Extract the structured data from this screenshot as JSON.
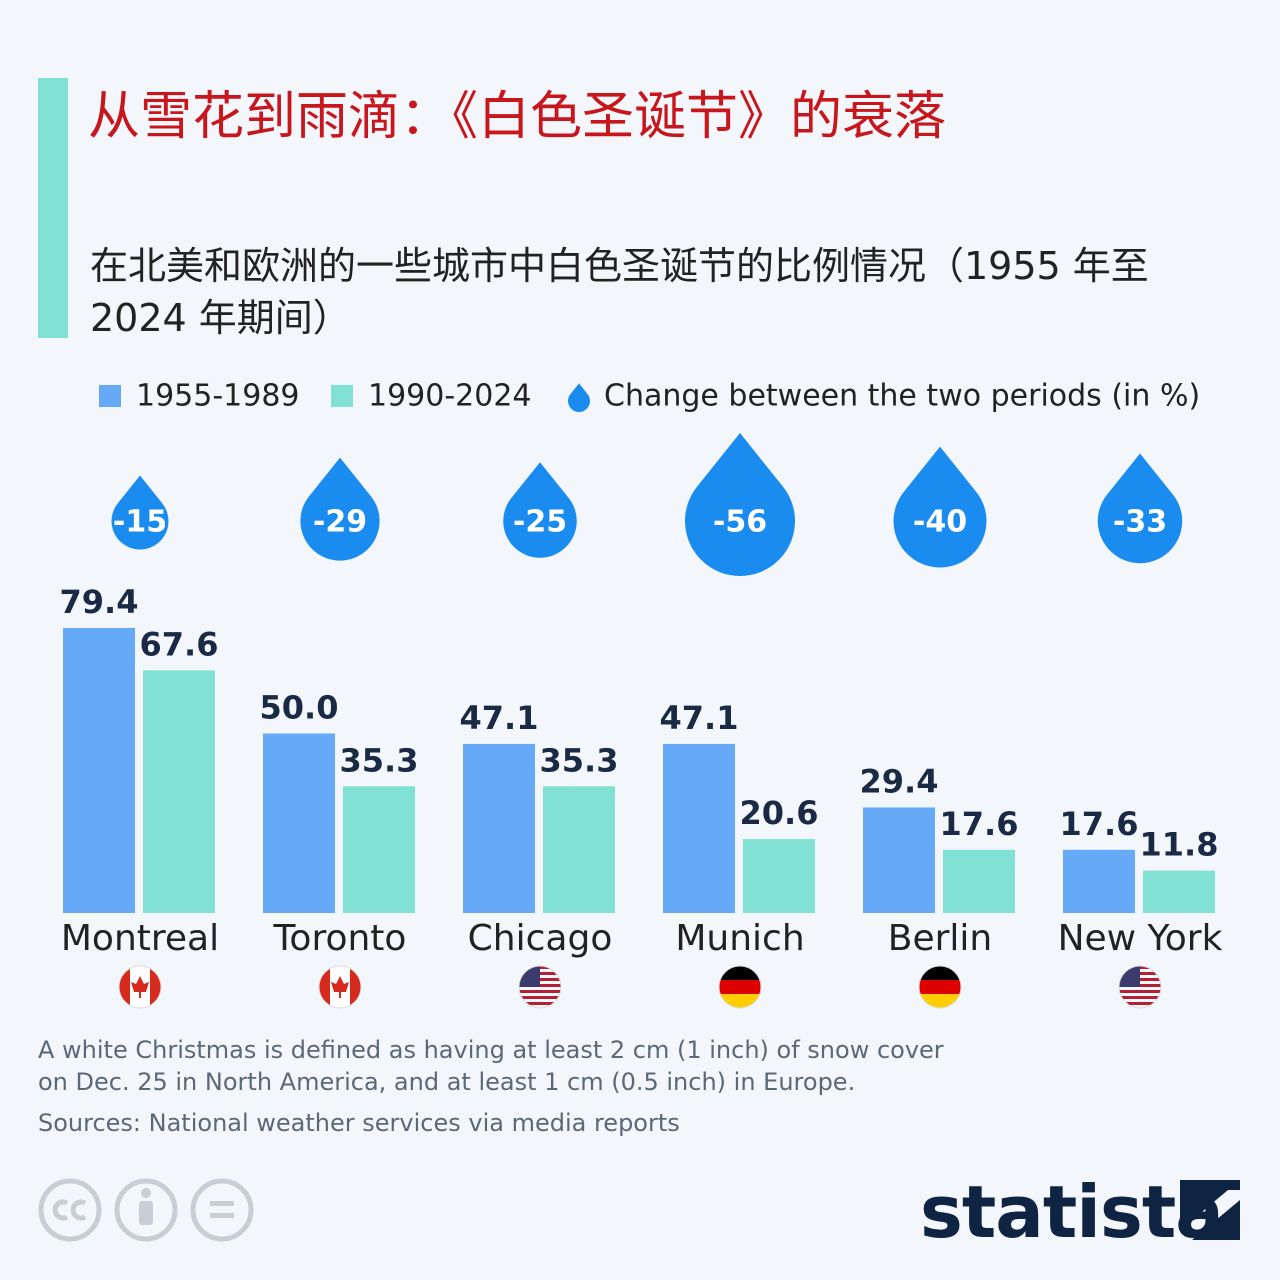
{
  "chart_data": {
    "type": "bar",
    "title": "从雪花到雨滴：《白色圣诞节》的衰落",
    "subtitle": "在北美和欧洲的一些城市中白色圣诞节的比例情况（1955 年至 2024 年期间）",
    "categories": [
      "Montreal",
      "Toronto",
      "Chicago",
      "Munich",
      "Berlin",
      "New York"
    ],
    "series": [
      {
        "name": "1955-1989",
        "color": "#66aaf7",
        "values": [
          79.4,
          50.0,
          47.1,
          47.1,
          29.4,
          17.6
        ],
        "value_labels": [
          "79.4",
          "50.0",
          "47.1",
          "47.1",
          "29.4",
          "17.6"
        ]
      },
      {
        "name": "1990-2024",
        "color": "#80e0d4",
        "values": [
          67.6,
          35.3,
          35.3,
          20.6,
          17.6,
          11.8
        ],
        "value_labels": [
          "67.6",
          "35.3",
          "35.3",
          "20.6",
          "17.6",
          "11.8"
        ]
      }
    ],
    "change": {
      "name": "Change between the two periods (in %)",
      "color": "#1a8cf0",
      "values": [
        -15,
        -29,
        -25,
        -56,
        -40,
        -33
      ]
    },
    "note": "A white Christmas is defined as having at least 2 cm (1 inch) of snow cover on Dec. 25 in North America, and at least 1 cm (0.5 inch) in Europe.",
    "source": "Sources: National weather services via media reports",
    "brand": "statista"
  }
}
